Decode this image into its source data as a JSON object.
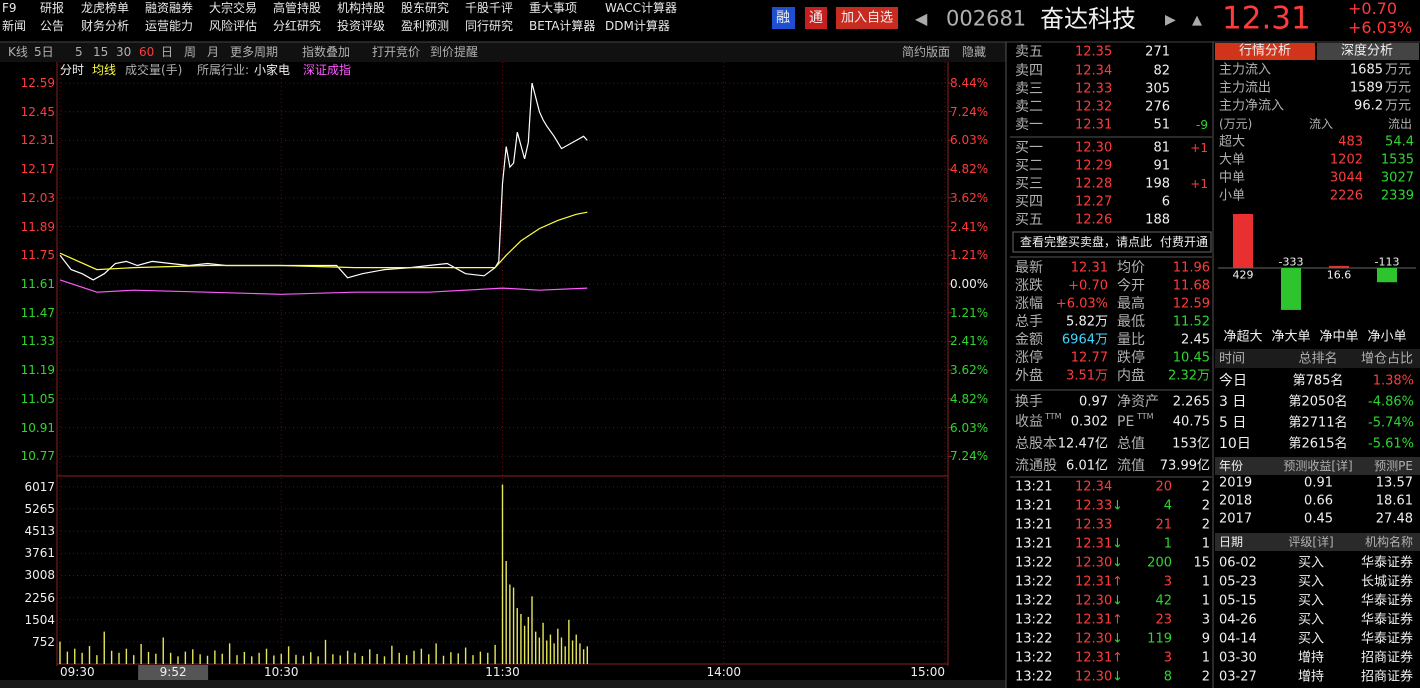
{
  "menu": {
    "row1": [
      "F9",
      "研报",
      "龙虎榜单",
      "融资融券",
      "大宗交易",
      "高管持股",
      "机构持股",
      "股东研究",
      "千股千评",
      "重大事项",
      "WACC计算器"
    ],
    "row2": [
      "新闻",
      "公告",
      "财务分析",
      "运营能力",
      "风险评估",
      "分红研究",
      "投资评级",
      "盈利预测",
      "同行研究",
      "BETA计算器",
      "DDM计算器"
    ]
  },
  "header": {
    "badges": [
      "融",
      "通"
    ],
    "add_button": "加入自选",
    "code": "002681",
    "name": "奋达科技",
    "price": "12.31",
    "change": "+0.70",
    "change_pct": "+6.03%"
  },
  "toolbar": {
    "items": [
      "K线",
      "5日",
      "5",
      "15",
      "30",
      "60",
      "日",
      "周",
      "月",
      "更多周期",
      "指数叠加",
      "打开竞价",
      "到价提醒"
    ],
    "right": [
      "简约版面",
      "隐藏"
    ]
  },
  "legend": [
    "分时",
    "均线",
    "成交量(手)",
    "所属行业:",
    "小家电",
    "深证成指"
  ],
  "chart": {
    "type": "line",
    "xlim": [
      0,
      240
    ],
    "xticks": [
      {
        "value": 0,
        "label": "09:30"
      },
      {
        "value": 60,
        "label": "10:30"
      },
      {
        "value": 120,
        "label": "11:30"
      },
      {
        "value": 180,
        "label": "14:00"
      },
      {
        "value": 240,
        "label": "15:00"
      }
    ],
    "cursor_label": {
      "value": 22,
      "label": "9:52"
    },
    "ylim": [
      10.63,
      12.59
    ],
    "yticks": [
      12.59,
      12.45,
      12.31,
      12.17,
      12.03,
      11.89,
      11.75,
      11.61,
      11.47,
      11.33,
      11.19,
      11.05,
      10.91,
      10.77
    ],
    "y2lim": [
      -8.44,
      8.44
    ],
    "y2ticks": [
      {
        "value": 8.44,
        "label": "8.44%"
      },
      {
        "value": 7.24,
        "label": "7.24%"
      },
      {
        "value": 6.03,
        "label": "6.03%"
      },
      {
        "value": 4.82,
        "label": "4.82%"
      },
      {
        "value": 3.62,
        "label": "3.62%"
      },
      {
        "value": 2.41,
        "label": "2.41%"
      },
      {
        "value": 1.21,
        "label": "1.21%"
      },
      {
        "value": 0,
        "label": "0.00%"
      },
      {
        "value": -1.21,
        "label": "1.21%"
      },
      {
        "value": -2.41,
        "label": "2.41%"
      },
      {
        "value": -3.62,
        "label": "3.62%"
      },
      {
        "value": -4.82,
        "label": "4.82%"
      },
      {
        "value": -6.03,
        "label": "6.03%"
      },
      {
        "value": -7.24,
        "label": "7.24%"
      }
    ],
    "series": [
      {
        "color": "#ffffff",
        "x": [
          0,
          3,
          6,
          9,
          12,
          15,
          18,
          21,
          25,
          30,
          35,
          40,
          45,
          50,
          55,
          60,
          65,
          70,
          75,
          78,
          82,
          88,
          95,
          100,
          105,
          110,
          115,
          118,
          119,
          120,
          121,
          122,
          123,
          124,
          126,
          127,
          128,
          130,
          131,
          132,
          134,
          136,
          138,
          140,
          142,
          143
        ],
        "values": [
          11.75,
          11.68,
          11.66,
          11.63,
          11.66,
          11.71,
          11.72,
          11.7,
          11.72,
          11.71,
          11.7,
          11.71,
          11.7,
          11.7,
          11.7,
          11.7,
          11.7,
          11.7,
          11.7,
          11.64,
          11.66,
          11.68,
          11.69,
          11.7,
          11.71,
          11.66,
          11.65,
          11.69,
          11.72,
          12.1,
          12.28,
          12.18,
          12.2,
          12.35,
          12.22,
          12.3,
          12.59,
          12.45,
          12.41,
          12.38,
          12.33,
          12.27,
          12.29,
          12.31,
          12.33,
          12.31
        ]
      },
      {
        "color": "#ffff40",
        "x": [
          0,
          10,
          20,
          40,
          60,
          80,
          100,
          118,
          121,
          125,
          130,
          135,
          140,
          143
        ],
        "values": [
          11.76,
          11.68,
          11.69,
          11.7,
          11.7,
          11.69,
          11.69,
          11.69,
          11.75,
          11.82,
          11.88,
          11.92,
          11.95,
          11.96
        ]
      },
      {
        "color": "#ff5aff",
        "x": [
          0,
          10,
          20,
          40,
          60,
          80,
          100,
          120,
          130,
          143
        ],
        "values": [
          11.63,
          11.57,
          11.58,
          11.57,
          11.56,
          11.57,
          11.57,
          11.59,
          11.58,
          11.59
        ]
      }
    ],
    "volume": {
      "color": "#e6e65a",
      "ylim": [
        0,
        6150
      ],
      "yticks": [
        6017,
        5265,
        4513,
        3761,
        3008,
        2256,
        1504,
        752
      ],
      "x": [
        0,
        2,
        4,
        6,
        8,
        10,
        12,
        14,
        16,
        18,
        20,
        22,
        24,
        26,
        28,
        30,
        32,
        34,
        36,
        38,
        40,
        42,
        44,
        46,
        48,
        50,
        52,
        54,
        56,
        58,
        60,
        62,
        64,
        66,
        68,
        70,
        72,
        74,
        76,
        78,
        80,
        82,
        84,
        86,
        88,
        90,
        92,
        94,
        96,
        98,
        100,
        102,
        104,
        106,
        108,
        110,
        112,
        114,
        116,
        118,
        120,
        121,
        122,
        123,
        124,
        125,
        126,
        127,
        128,
        129,
        130,
        131,
        132,
        133,
        134,
        135,
        136,
        137,
        138,
        139,
        140,
        141,
        142,
        143
      ],
      "values": [
        760,
        420,
        520,
        380,
        610,
        300,
        1100,
        450,
        380,
        520,
        300,
        680,
        410,
        350,
        900,
        380,
        260,
        420,
        500,
        330,
        280,
        460,
        350,
        700,
        300,
        410,
        260,
        380,
        520,
        290,
        350,
        600,
        310,
        280,
        400,
        260,
        820,
        330,
        290,
        450,
        380,
        270,
        500,
        340,
        260,
        620,
        380,
        300,
        450,
        520,
        330,
        700,
        280,
        400,
        360,
        560,
        300,
        420,
        380,
        650,
        6100,
        3500,
        2700,
        2600,
        1900,
        1700,
        1300,
        1600,
        2300,
        1100,
        900,
        1400,
        800,
        1000,
        700,
        1200,
        900,
        600,
        1500,
        800,
        1000,
        700,
        500,
        600
      ]
    }
  },
  "order_book": {
    "rows": [
      [
        "卖五",
        "12.35",
        "271",
        ""
      ],
      [
        "卖四",
        "12.34",
        "82",
        ""
      ],
      [
        "卖三",
        "12.33",
        "305",
        ""
      ],
      [
        "卖二",
        "12.32",
        "276",
        ""
      ],
      [
        "卖一",
        "12.31",
        "51",
        "-9"
      ],
      [
        "买一",
        "12.30",
        "81",
        "+1"
      ],
      [
        "买二",
        "12.29",
        "91",
        ""
      ],
      [
        "买三",
        "12.28",
        "198",
        "+1"
      ],
      [
        "买四",
        "12.27",
        "6",
        ""
      ],
      [
        "买五",
        "12.26",
        "188",
        ""
      ]
    ],
    "notice": "查看完整买卖盘，请点此",
    "notice_link": "付费开通"
  },
  "quote_stats": {
    "rows": [
      {
        "cells": [
          "最新",
          "12.31",
          "均价",
          "11.96"
        ],
        "colors": [
          "red",
          "red"
        ]
      },
      {
        "cells": [
          "涨跌",
          "+0.70",
          "今开",
          "11.68"
        ],
        "colors": [
          "red",
          "red"
        ]
      },
      {
        "cells": [
          "涨幅",
          "+6.03%",
          "最高",
          "12.59"
        ],
        "colors": [
          "red",
          "red"
        ]
      },
      {
        "cells": [
          "总手",
          "5.82万",
          "最低",
          "11.52"
        ],
        "colors": [
          "white",
          "green"
        ]
      },
      {
        "cells": [
          "金额",
          "6964万",
          "量比",
          "2.45"
        ],
        "colors": [
          "cyan",
          "white"
        ]
      },
      {
        "cells": [
          "涨停",
          "12.77",
          "跌停",
          "10.45"
        ],
        "colors": [
          "red",
          "green"
        ]
      },
      {
        "cells": [
          "外盘",
          "3.51万",
          "内盘",
          "2.32万"
        ],
        "colors": [
          "red",
          "green"
        ]
      }
    ]
  },
  "fundamentals": {
    "superscript": "TTM",
    "rows": [
      [
        "换手",
        "0.97",
        "净资产",
        "2.265"
      ],
      [
        "收益",
        "0.302",
        "PE",
        "40.75"
      ],
      [
        "总股本",
        "12.47亿",
        "总值",
        "153亿"
      ],
      [
        "流通股",
        "6.01亿",
        "流值",
        "73.99亿"
      ]
    ]
  },
  "trades": {
    "rows": [
      [
        "13:21",
        "12.34",
        "",
        "20",
        "2"
      ],
      [
        "13:21",
        "12.33",
        "↓",
        "4",
        "2"
      ],
      [
        "13:21",
        "12.33",
        "",
        "21",
        "2"
      ],
      [
        "13:21",
        "12.31",
        "↓",
        "1",
        "1"
      ],
      [
        "13:22",
        "12.30",
        "↓",
        "200",
        "15"
      ],
      [
        "13:22",
        "12.31",
        "↑",
        "3",
        "1"
      ],
      [
        "13:22",
        "12.30",
        "↓",
        "42",
        "1"
      ],
      [
        "13:22",
        "12.31",
        "↑",
        "23",
        "3"
      ],
      [
        "13:22",
        "12.30",
        "↓",
        "119",
        "9"
      ],
      [
        "13:22",
        "12.31",
        "↑",
        "3",
        "1"
      ],
      [
        "13:22",
        "12.30",
        "↓",
        "8",
        "2"
      ]
    ]
  },
  "analysis": {
    "tabs": [
      "行情分析",
      "深度分析"
    ],
    "flows": [
      [
        "主力流入",
        "1685",
        "万元"
      ],
      [
        "主力流出",
        "1589",
        "万元"
      ],
      [
        "主力净流入",
        "96.2",
        "万元"
      ]
    ],
    "flow_table": {
      "header": [
        "(万元)",
        "流入",
        "流出"
      ],
      "rows": [
        [
          "超大",
          "483",
          "54.4"
        ],
        [
          "大单",
          "1202",
          "1535"
        ],
        [
          "中单",
          "3044",
          "3027"
        ],
        [
          "小单",
          "2226",
          "2339"
        ]
      ]
    },
    "net_chart": {
      "type": "bar",
      "categories": [
        "净超大",
        "净大单",
        "净中单",
        "净小单"
      ],
      "values": [
        429,
        -333,
        16.6,
        -113
      ],
      "up_color": "#e83030",
      "down_color": "#2ec42e",
      "ylim": [
        -429,
        429
      ]
    },
    "rank": {
      "header": [
        "时间",
        "总排名",
        "增仓占比"
      ],
      "rows": [
        [
          "今日",
          "第785名",
          "1.38%"
        ],
        [
          "3 日",
          "第2050名",
          "-4.86%"
        ],
        [
          "5 日",
          "第2711名",
          "-5.74%"
        ],
        [
          "10日",
          "第2615名",
          "-5.61%"
        ]
      ]
    },
    "forecast": {
      "header": [
        "年份",
        "预测收益[详]",
        "预测PE"
      ],
      "rows": [
        [
          "2019",
          "0.91",
          "13.57"
        ],
        [
          "2018",
          "0.66",
          "18.61"
        ],
        [
          "2017",
          "0.45",
          "27.48"
        ]
      ]
    },
    "ratings": {
      "header": [
        "日期",
        "评级[详]",
        "机构名称"
      ],
      "rows": [
        [
          "06-02",
          "买入",
          "华泰证券"
        ],
        [
          "05-23",
          "买入",
          "长城证券"
        ],
        [
          "05-15",
          "买入",
          "华泰证券"
        ],
        [
          "04-26",
          "买入",
          "华泰证券"
        ],
        [
          "04-14",
          "买入",
          "华泰证券"
        ],
        [
          "03-30",
          "增持",
          "招商证券"
        ],
        [
          "03-27",
          "增持",
          "招商证券"
        ]
      ]
    }
  }
}
